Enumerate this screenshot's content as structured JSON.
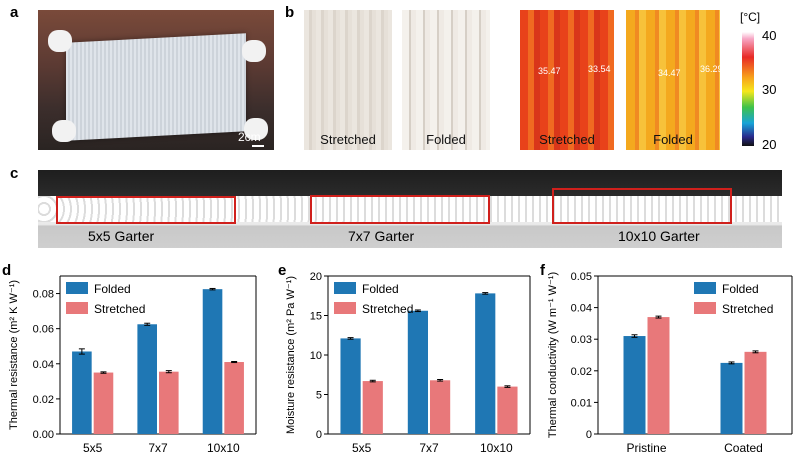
{
  "panels": {
    "a": {
      "label": "a",
      "scale_bar": "2cm"
    },
    "b": {
      "label": "b",
      "photo_captions": [
        "Stretched",
        "Folded"
      ],
      "thermal_captions": [
        "Stretched",
        "Folded"
      ],
      "thermal_readings": [
        [
          "35.47",
          "33.54"
        ],
        [
          "34.47",
          "36.29"
        ]
      ],
      "colorbar": {
        "unit": "[°C]",
        "ticks": [
          "40",
          "30",
          "20"
        ],
        "max": 40,
        "min": 20
      }
    },
    "c": {
      "label": "c",
      "captions": [
        "5x5 Garter",
        "7x7 Garter",
        "10x10 Garter"
      ]
    }
  },
  "chart_data": [
    {
      "panel": "d",
      "type": "bar",
      "categories": [
        "5x5",
        "7x7",
        "10x10"
      ],
      "ylabel": "Thermal resistance (m² K W⁻¹)",
      "ylim": [
        0,
        0.09
      ],
      "yticks": [
        "0.00",
        "0.02",
        "0.04",
        "0.06",
        "0.08"
      ],
      "ytick_values": [
        0,
        0.02,
        0.04,
        0.06,
        0.08
      ],
      "legend_position": "top-left",
      "series": [
        {
          "name": "Folded",
          "color": "#1f77b4",
          "values": [
            0.047,
            0.0625,
            0.0825
          ],
          "errors": [
            0.0015,
            0.0006,
            0.0004
          ]
        },
        {
          "name": "Stretched",
          "color": "#e8787a",
          "values": [
            0.035,
            0.0355,
            0.041
          ],
          "errors": [
            0.0004,
            0.0006,
            0.0003
          ]
        }
      ]
    },
    {
      "panel": "e",
      "type": "bar",
      "categories": [
        "5x5",
        "7x7",
        "10x10"
      ],
      "ylabel": "Moisture resistance (m² Pa W⁻¹)",
      "ylim": [
        0,
        20
      ],
      "yticks": [
        "0",
        "5",
        "10",
        "15",
        "20"
      ],
      "ytick_values": [
        0,
        5,
        10,
        15,
        20
      ],
      "legend_position": "top-left",
      "series": [
        {
          "name": "Folded",
          "color": "#1f77b4",
          "values": [
            12.1,
            15.6,
            17.8
          ],
          "errors": [
            0.1,
            0.1,
            0.1
          ]
        },
        {
          "name": "Stretched",
          "color": "#e8787a",
          "values": [
            6.7,
            6.8,
            6.0
          ],
          "errors": [
            0.1,
            0.1,
            0.1
          ]
        }
      ]
    },
    {
      "panel": "f",
      "type": "bar",
      "categories": [
        "Pristine",
        "Coated"
      ],
      "ylabel": "Thermal conductivity (W m⁻¹ W⁻¹)",
      "ylim": [
        0,
        0.05
      ],
      "yticks": [
        "0",
        "0.01",
        "0.02",
        "0.03",
        "0.04",
        "0.05"
      ],
      "ytick_values": [
        0,
        0.01,
        0.02,
        0.03,
        0.04,
        0.05
      ],
      "legend_position": "top-right",
      "series": [
        {
          "name": "Folded",
          "color": "#1f77b4",
          "values": [
            0.031,
            0.0225
          ],
          "errors": [
            0.0004,
            0.0003
          ]
        },
        {
          "name": "Stretched",
          "color": "#e8787a",
          "values": [
            0.037,
            0.026
          ],
          "errors": [
            0.0003,
            0.0003
          ]
        }
      ]
    }
  ]
}
